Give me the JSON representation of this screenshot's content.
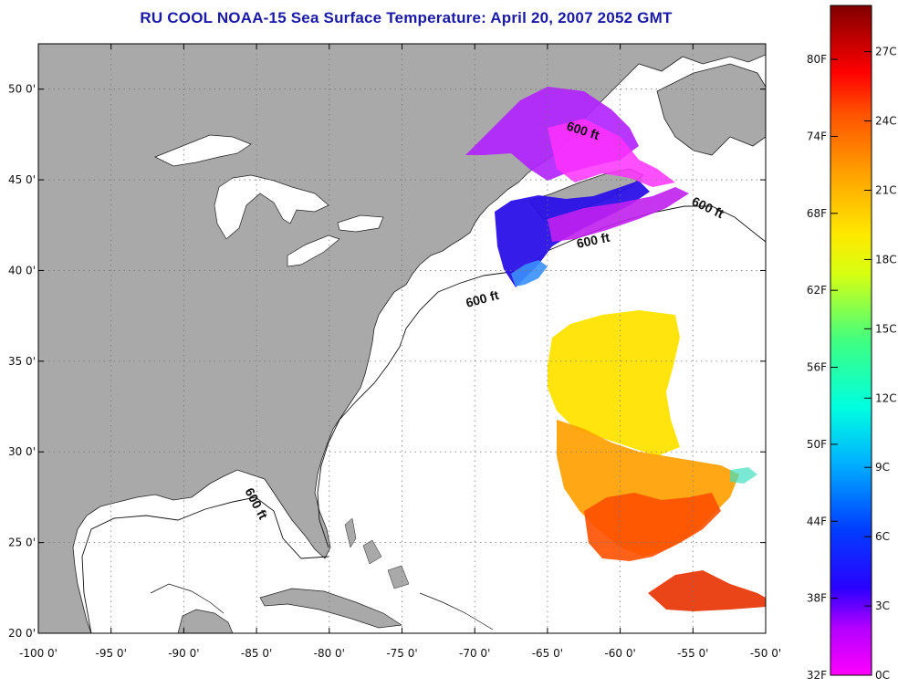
{
  "title": "RU COOL  NOAA-15  Sea Surface Temperature:  April 20, 2007 2052 GMT",
  "map": {
    "lon_range": [
      -100,
      -50
    ],
    "lat_range": [
      20,
      52.5
    ],
    "grid": true,
    "lon_ticks": [
      "-100 0'",
      "-95 0'",
      "-90 0'",
      "-85 0'",
      "-80 0'",
      "-75 0'",
      "-70 0'",
      "-65 0'",
      "-60 0'",
      "-55 0'",
      "-50 0'"
    ],
    "lat_ticks": [
      "20 0'",
      "25 0'",
      "30 0'",
      "35 0'",
      "40 0'",
      "45 0'",
      "50 0'"
    ],
    "lon_values": [
      -100,
      -95,
      -90,
      -85,
      -80,
      -75,
      -70,
      -65,
      -60,
      -55,
      -50
    ],
    "lat_values": [
      20,
      25,
      30,
      35,
      40,
      45,
      50
    ],
    "land_color": "#a9a9a9",
    "water_color": "#ffffff",
    "depth_labels": [
      "600 ft",
      "600 ft",
      "600 ft",
      "600 ft",
      "600 ft"
    ]
  },
  "colorbar": {
    "fahrenheit_labels": [
      "80F",
      "74F",
      "68F",
      "62F",
      "56F",
      "50F",
      "44F",
      "38F",
      "32F"
    ],
    "fahrenheit_values": [
      80,
      74,
      68,
      62,
      56,
      50,
      44,
      38,
      32
    ],
    "celsius_labels": [
      "27C",
      "24C",
      "21C",
      "18C",
      "15C",
      "12C",
      "9C",
      "6C",
      "3C",
      "0C"
    ],
    "celsius_values": [
      27,
      24,
      21,
      18,
      15,
      12,
      9,
      6,
      3,
      0
    ],
    "range_c": [
      0,
      29
    ],
    "colors": [
      "#ff00ff",
      "#8000ff",
      "#0000ff",
      "#0060ff",
      "#00d0ff",
      "#00ffd0",
      "#60ff60",
      "#e0ff00",
      "#ffe000",
      "#ffa000",
      "#ff6000",
      "#ff0000",
      "#c00000",
      "#900000"
    ]
  }
}
